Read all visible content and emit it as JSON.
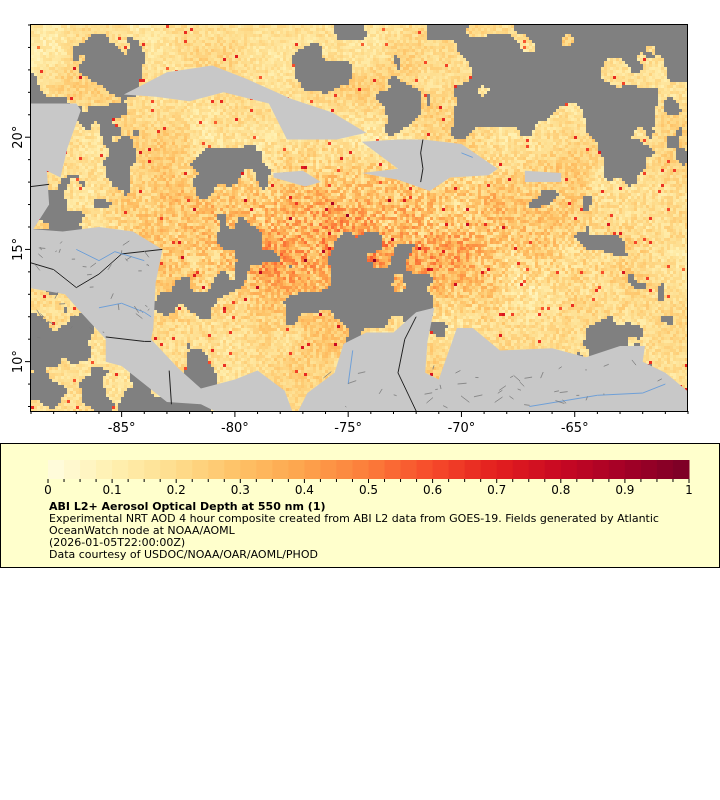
{
  "map": {
    "lon_range": [
      -89,
      -60
    ],
    "lat_range": [
      7.8,
      25
    ],
    "lon_ticks": [
      "-85°",
      "-80°",
      "-75°",
      "-70°",
      "-65°"
    ],
    "lon_tick_values": [
      -85,
      -80,
      -75,
      -70,
      -65
    ],
    "lat_ticks": [
      "10°",
      "15°",
      "20°"
    ],
    "lat_tick_values": [
      10,
      15,
      20
    ],
    "colors": {
      "land": "#c8c8c8",
      "no_data": "#808080",
      "rivers": "#6fa0d8",
      "borders": "#707070"
    }
  },
  "legend": {
    "colorbar": {
      "range": [
        0,
        1
      ],
      "tick_labels": [
        "0",
        "0.1",
        "0.2",
        "0.3",
        "0.4",
        "0.5",
        "0.6",
        "0.7",
        "0.8",
        "0.9",
        "1"
      ],
      "colors": [
        "#fffde0",
        "#fff0b0",
        "#fedc8c",
        "#fec165",
        "#fda34c",
        "#fc7c3a",
        "#f64a2a",
        "#e31f1e",
        "#c80823",
        "#a30026",
        "#7a0026"
      ]
    },
    "title": "ABI L2+ Aerosol Optical Depth at 550 nm (1)",
    "description_line1": "Experimental NRT AOD 4 hour composite created from ABI L2 data from GOES-19. Fields generated by Atlantic",
    "description_line2": "OceanWatch node at NOAA/AOML",
    "time": "(2026-01-05T22:00:00Z)",
    "credit": "Data courtesy of USDOC/NOAA/OAR/AOML/PHOD",
    "background": "#ffffcc"
  }
}
